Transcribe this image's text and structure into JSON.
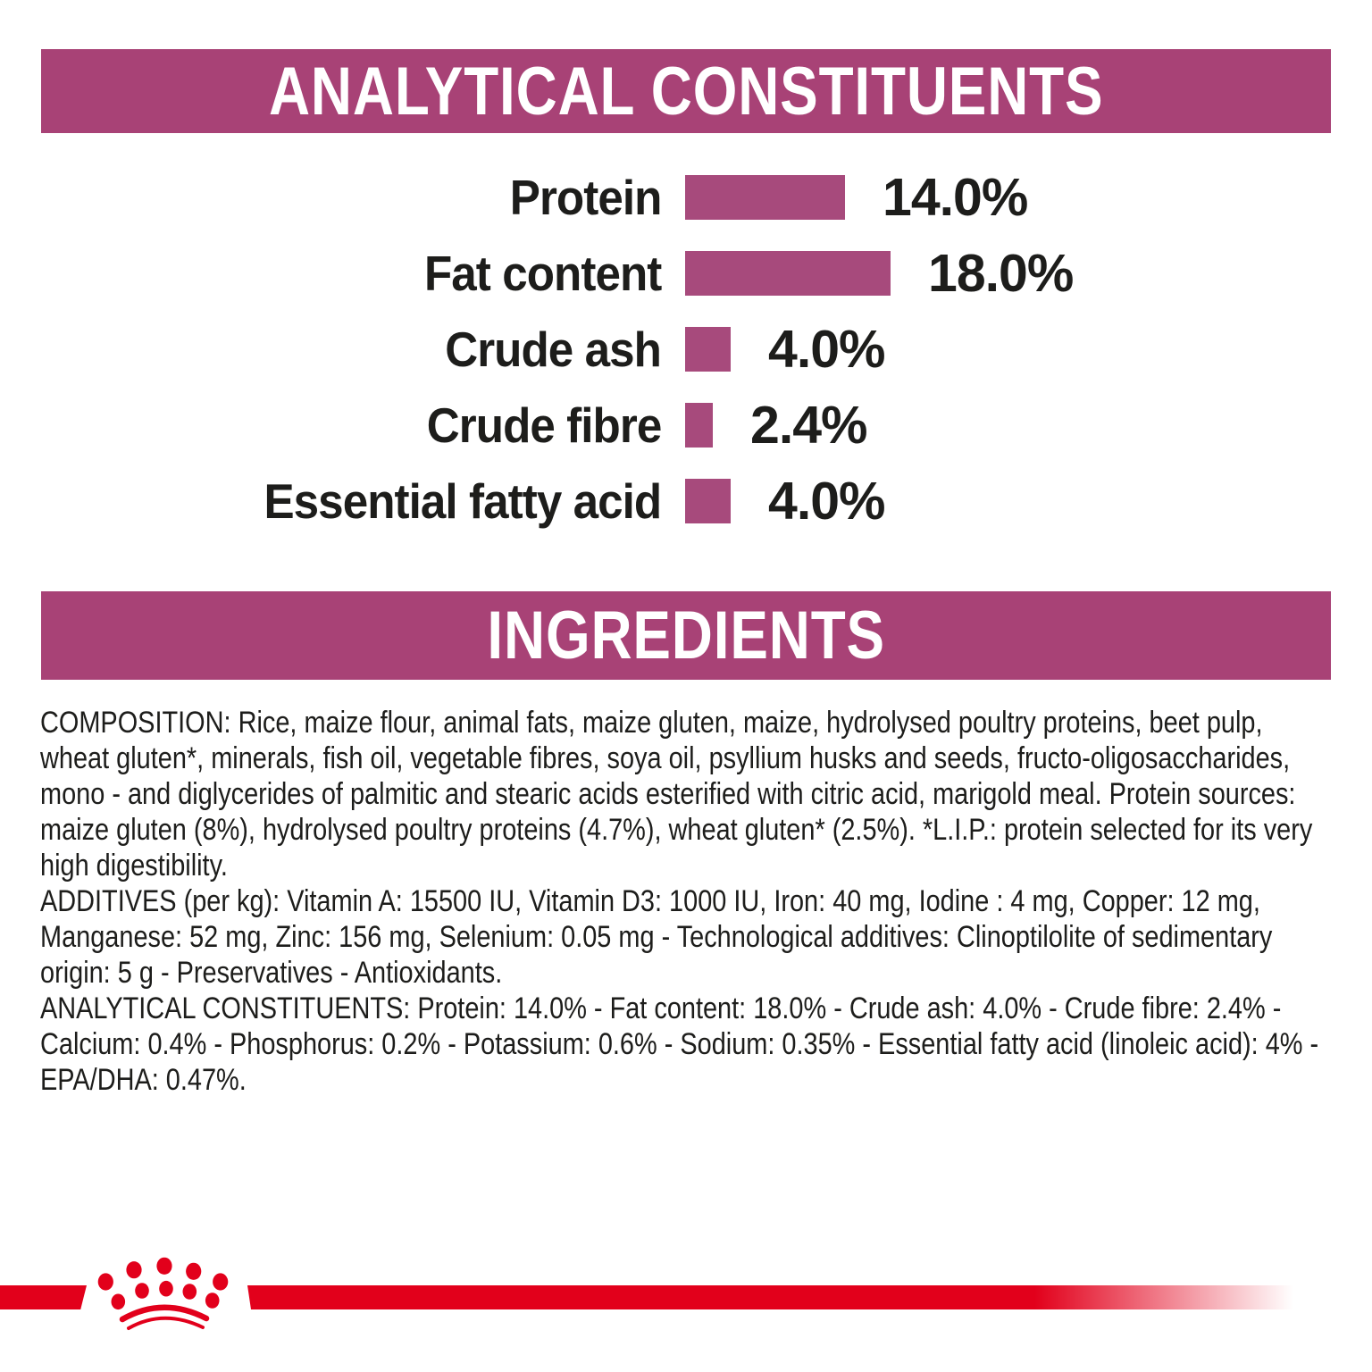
{
  "colors": {
    "banner_bg": "#a84276",
    "bar_fill": "#a74a7c",
    "banner_text": "#ffffff",
    "body_text": "#1d1d1b",
    "brand_red": "#e2001b"
  },
  "banners": {
    "analytical_title": "ANALYTICAL CONSTITUENTS",
    "ingredients_title": "INGREDIENTS"
  },
  "chart_data": {
    "type": "bar",
    "orientation": "horizontal",
    "title": "ANALYTICAL CONSTITUENTS",
    "categories": [
      "Protein",
      "Fat content",
      "Crude ash",
      "Crude fibre",
      "Essential fatty acid"
    ],
    "values": [
      14.0,
      18.0,
      4.0,
      2.4,
      4.0
    ],
    "value_labels": [
      "14.0%",
      "18.0%",
      "4.0%",
      "2.4%",
      "4.0%"
    ],
    "unit": "%",
    "xlim": [
      0,
      18
    ],
    "grid": false,
    "legend": false,
    "bar_color": "#a74a7c"
  },
  "body": {
    "composition": "COMPOSITION: Rice, maize flour, animal fats, maize gluten, maize, hydrolysed poultry proteins, beet pulp, wheat gluten*, minerals, fish oil, vegetable fibres, soya oil, psyllium husks and seeds, fructo-oligosaccharides, mono - and diglycerides of palmitic and stearic acids esterified with citric acid, marigold meal.  Protein sources: maize gluten (8%), hydrolysed poultry proteins (4.7%), wheat gluten* (2.5%). *L.I.P.: protein selected for its very high digestibility.",
    "additives": "ADDITIVES (per kg): Vitamin A: 15500 IU, Vitamin D3: 1000 IU, Iron: 40 mg, Iodine : 4 mg, Copper: 12 mg, Manganese: 52 mg, Zinc: 156 mg, Selenium: 0.05 mg - Technological additives: Clinoptilolite of sedimentary origin: 5 g - Preservatives - Antioxidants.",
    "analytical_constituents": "ANALYTICAL CONSTITUENTS: Protein: 14.0% - Fat content: 18.0% - Crude ash: 4.0% - Crude fibre: 2.4% - Calcium: 0.4% - Phosphorus: 0.2% - Potassium: 0.6% - Sodium: 0.35% - Essential fatty acid (linoleic acid): 4% - EPA/DHA: 0.47%."
  },
  "footer": {
    "logo": "royal-canin-crown"
  }
}
